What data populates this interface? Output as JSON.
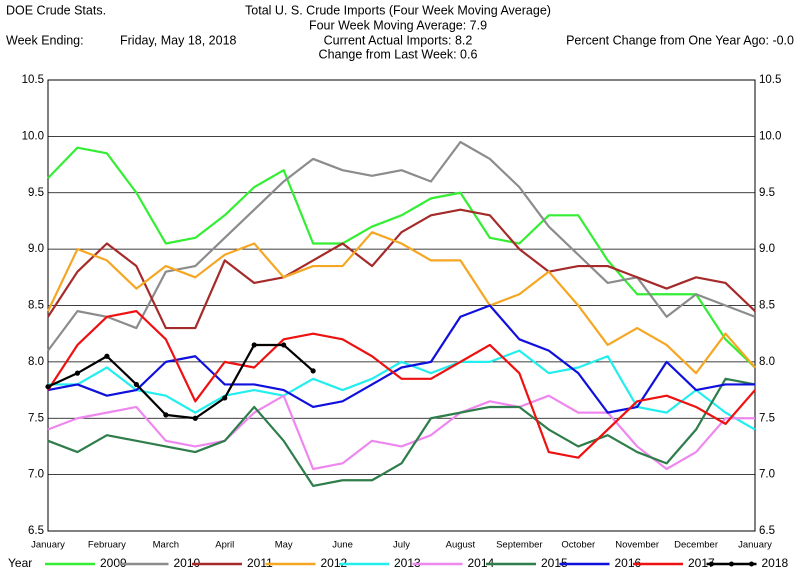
{
  "header": {
    "source": "DOE Crude Stats.",
    "week_label": "Week Ending:",
    "week_date": "Friday, May 18, 2018",
    "stat1": "Four Week Moving Average:  7.9",
    "stat2": "Current Actual Imports:  8.2",
    "stat3": "Change from Last Week:  0.6",
    "stat4": "Percent Change from One Year Ago:  -0.0"
  },
  "chart_data": {
    "type": "line",
    "title": "Total U. S. Crude Imports (Four Week Moving Average)",
    "legend_title": "Year",
    "categories": [
      "January",
      null,
      "February",
      null,
      "March",
      null,
      "April",
      null,
      "May",
      null,
      "June",
      null,
      "July",
      null,
      "August",
      null,
      "September",
      null,
      "October",
      null,
      "November",
      null,
      "December",
      null,
      "January"
    ],
    "ylim": [
      6.5,
      10.5
    ],
    "yticks": [
      6.5,
      {
        "value": 7,
        "label": "7.0"
      },
      7.5,
      {
        "value": 8,
        "label": "8.0"
      },
      8.5,
      {
        "value": 9,
        "label": "9.0"
      },
      9.5,
      {
        "value": 10,
        "label": "10.0"
      },
      10.5
    ],
    "grid": true,
    "series": [
      {
        "name": "2009",
        "color": "#33ee33",
        "values": [
          9.63,
          9.9,
          9.85,
          9.5,
          9.05,
          9.1,
          9.3,
          9.55,
          9.7,
          9.05,
          9.05,
          9.2,
          9.3,
          9.45,
          9.5,
          9.1,
          9.05,
          9.3,
          9.3,
          8.9,
          8.6,
          8.6,
          8.6,
          8.2,
          7.95
        ]
      },
      {
        "name": "2010",
        "color": "#8c8c8c",
        "values": [
          8.1,
          8.45,
          8.4,
          8.3,
          8.8,
          8.85,
          9.1,
          9.35,
          9.6,
          9.8,
          9.7,
          9.65,
          9.7,
          9.6,
          9.95,
          9.8,
          9.55,
          9.2,
          8.95,
          8.7,
          8.75,
          8.4,
          8.6,
          8.5,
          8.4
        ]
      },
      {
        "name": "2011",
        "color": "#a52a2a",
        "values": [
          8.4,
          8.8,
          9.05,
          8.85,
          8.3,
          8.3,
          8.9,
          8.7,
          8.75,
          8.9,
          9.05,
          8.85,
          9.15,
          9.3,
          9.35,
          9.3,
          9.0,
          8.8,
          8.85,
          8.85,
          8.75,
          8.65,
          8.75,
          8.7,
          8.45
        ]
      },
      {
        "name": "2012",
        "color": "#f5a623",
        "values": [
          8.45,
          9.0,
          8.9,
          8.65,
          8.85,
          8.75,
          8.95,
          9.05,
          8.75,
          8.85,
          8.85,
          9.15,
          9.05,
          8.9,
          8.9,
          8.5,
          8.6,
          8.8,
          8.5,
          8.15,
          8.3,
          8.15,
          7.9,
          8.25,
          7.95
        ]
      },
      {
        "name": "2013",
        "color": "#22eeee",
        "values": [
          7.8,
          7.8,
          7.95,
          7.75,
          7.7,
          7.55,
          7.7,
          7.75,
          7.7,
          7.85,
          7.75,
          7.85,
          8.0,
          7.9,
          8.0,
          8.0,
          8.1,
          7.9,
          7.95,
          8.05,
          7.6,
          7.55,
          7.75,
          7.55,
          7.4
        ]
      },
      {
        "name": "2014",
        "color": "#ee88ee",
        "values": [
          7.4,
          7.5,
          7.55,
          7.6,
          7.3,
          7.25,
          7.3,
          7.55,
          7.7,
          7.05,
          7.1,
          7.3,
          7.25,
          7.35,
          7.55,
          7.65,
          7.6,
          7.7,
          7.55,
          7.55,
          7.25,
          7.05,
          7.2,
          7.5,
          7.5
        ]
      },
      {
        "name": "2015",
        "color": "#2e7d4a",
        "values": [
          7.3,
          7.2,
          7.35,
          7.3,
          7.25,
          7.2,
          7.3,
          7.6,
          7.3,
          6.9,
          6.95,
          6.95,
          7.1,
          7.5,
          7.55,
          7.6,
          7.6,
          7.4,
          7.25,
          7.35,
          7.2,
          7.1,
          7.4,
          7.85,
          7.8
        ]
      },
      {
        "name": "2016",
        "color": "#1010dd",
        "values": [
          7.75,
          7.8,
          7.7,
          7.75,
          8.0,
          8.05,
          7.8,
          7.8,
          7.75,
          7.6,
          7.65,
          7.8,
          7.95,
          8.0,
          8.4,
          8.5,
          8.2,
          8.1,
          7.9,
          7.55,
          7.6,
          8.0,
          7.75,
          7.8,
          7.8
        ]
      },
      {
        "name": "2017",
        "color": "#ee1111",
        "values": [
          7.75,
          8.15,
          8.4,
          8.45,
          8.2,
          7.65,
          8.0,
          7.95,
          8.2,
          8.25,
          8.2,
          8.05,
          7.85,
          7.85,
          8.0,
          8.15,
          7.9,
          7.2,
          7.15,
          7.4,
          7.65,
          7.7,
          7.6,
          7.45,
          7.75
        ]
      },
      {
        "name": "2018",
        "color": "#000000",
        "marker": true,
        "values": [
          7.78,
          7.9,
          8.05,
          7.8,
          7.53,
          7.5,
          7.68,
          8.15,
          8.15,
          7.92,
          null,
          null,
          null,
          null,
          null,
          null,
          null,
          null,
          null,
          null,
          null,
          null,
          null,
          null,
          null
        ]
      }
    ]
  }
}
